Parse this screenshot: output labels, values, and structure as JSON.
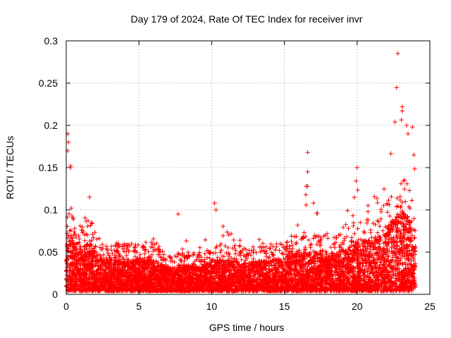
{
  "chart_data": {
    "type": "scatter",
    "title": "Day 179 of 2024, Rate Of TEC Index for receiver invr",
    "xlabel": "GPS time / hours",
    "ylabel": "ROTI / TECUs",
    "xlim": [
      0,
      25
    ],
    "ylim": [
      0,
      0.3
    ],
    "x_ticks": [
      0,
      5,
      10,
      15,
      20,
      25
    ],
    "x_tick_labels": [
      "0",
      "5",
      "10",
      "15",
      "20",
      "25"
    ],
    "y_ticks": [
      0,
      0.05,
      0.1,
      0.15,
      0.2,
      0.25,
      0.3
    ],
    "y_tick_labels": [
      "0",
      "0.05",
      "0.1",
      "0.15",
      "0.2",
      "0.25",
      "0.3"
    ],
    "grid": true,
    "marker": "+",
    "series_color": "#ff0000",
    "data_range_hours": [
      0,
      24
    ],
    "envelope": [
      {
        "x": 0.0,
        "typical_max": 0.08,
        "peak": 0.12
      },
      {
        "x": 0.3,
        "typical_max": 0.1,
        "peak": 0.19
      },
      {
        "x": 0.6,
        "typical_max": 0.07,
        "peak": 0.15
      },
      {
        "x": 1.0,
        "typical_max": 0.06,
        "peak": 0.08
      },
      {
        "x": 1.6,
        "typical_max": 0.08,
        "peak": 0.115
      },
      {
        "x": 2.5,
        "typical_max": 0.05,
        "peak": 0.06
      },
      {
        "x": 3.8,
        "typical_max": 0.05,
        "peak": 0.07
      },
      {
        "x": 5.0,
        "typical_max": 0.05,
        "peak": 0.06
      },
      {
        "x": 5.7,
        "typical_max": 0.055,
        "peak": 0.075
      },
      {
        "x": 7.0,
        "typical_max": 0.035,
        "peak": 0.05
      },
      {
        "x": 7.7,
        "typical_max": 0.04,
        "peak": 0.095
      },
      {
        "x": 9.0,
        "typical_max": 0.04,
        "peak": 0.05
      },
      {
        "x": 10.2,
        "typical_max": 0.05,
        "peak": 0.11
      },
      {
        "x": 11.0,
        "typical_max": 0.05,
        "peak": 0.085
      },
      {
        "x": 12.5,
        "typical_max": 0.045,
        "peak": 0.06
      },
      {
        "x": 14.0,
        "typical_max": 0.05,
        "peak": 0.08
      },
      {
        "x": 15.0,
        "typical_max": 0.05,
        "peak": 0.06
      },
      {
        "x": 15.5,
        "typical_max": 0.06,
        "peak": 0.08
      },
      {
        "x": 16.6,
        "typical_max": 0.06,
        "peak": 0.168
      },
      {
        "x": 17.5,
        "typical_max": 0.06,
        "peak": 0.09
      },
      {
        "x": 18.5,
        "typical_max": 0.06,
        "peak": 0.09
      },
      {
        "x": 19.5,
        "typical_max": 0.07,
        "peak": 0.11
      },
      {
        "x": 20.0,
        "typical_max": 0.08,
        "peak": 0.15
      },
      {
        "x": 21.0,
        "typical_max": 0.08,
        "peak": 0.12
      },
      {
        "x": 22.0,
        "typical_max": 0.1,
        "peak": 0.14
      },
      {
        "x": 22.7,
        "typical_max": 0.12,
        "peak": 0.285
      },
      {
        "x": 23.2,
        "typical_max": 0.13,
        "peak": 0.22
      },
      {
        "x": 23.7,
        "typical_max": 0.11,
        "peak": 0.2
      },
      {
        "x": 24.0,
        "typical_max": 0.08,
        "peak": 0.16
      }
    ],
    "notable_points": [
      {
        "x": 0.1,
        "y": 0.19
      },
      {
        "x": 0.15,
        "y": 0.18
      },
      {
        "x": 0.1,
        "y": 0.17
      },
      {
        "x": 0.3,
        "y": 0.15
      },
      {
        "x": 1.6,
        "y": 0.115
      },
      {
        "x": 7.7,
        "y": 0.095
      },
      {
        "x": 10.2,
        "y": 0.108
      },
      {
        "x": 10.3,
        "y": 0.1
      },
      {
        "x": 16.6,
        "y": 0.168
      },
      {
        "x": 16.6,
        "y": 0.145
      },
      {
        "x": 16.6,
        "y": 0.128
      },
      {
        "x": 17.0,
        "y": 0.108
      },
      {
        "x": 20.0,
        "y": 0.15
      },
      {
        "x": 22.6,
        "y": 0.204
      },
      {
        "x": 22.8,
        "y": 0.285
      },
      {
        "x": 23.1,
        "y": 0.222
      },
      {
        "x": 23.1,
        "y": 0.217
      },
      {
        "x": 23.4,
        "y": 0.2
      },
      {
        "x": 23.8,
        "y": 0.198
      },
      {
        "x": 23.5,
        "y": 0.19
      },
      {
        "x": 23.9,
        "y": 0.165
      }
    ]
  }
}
